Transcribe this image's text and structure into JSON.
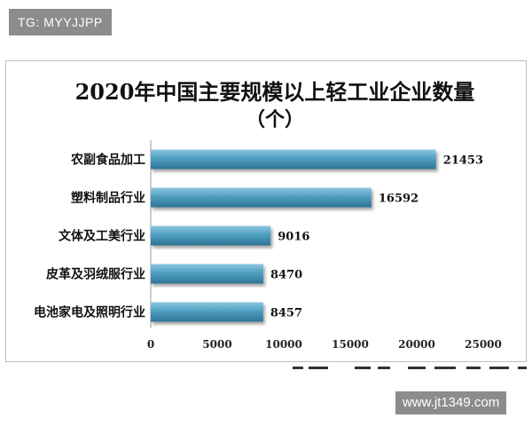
{
  "badge": {
    "text": "TG: MYYJJPP"
  },
  "watermark": {
    "text": "www.jt1349.com"
  },
  "chart_data": {
    "type": "bar",
    "orientation": "horizontal",
    "title": "2020年中国主要规模以上轻工业企业数量",
    "subtitle": "（个）",
    "categories": [
      "农副食品加工",
      "塑料制品行业",
      "文体及工美行业",
      "皮革及羽绒服行业",
      "电池家电及照明行业"
    ],
    "values": [
      21453,
      16592,
      9016,
      8470,
      8457
    ],
    "xlim": [
      0,
      25000
    ],
    "xticks": [
      0,
      5000,
      10000,
      15000,
      20000,
      25000
    ],
    "grid": false,
    "legend": "none",
    "bar_color": "#4f9fc2",
    "bar_color_light": "#8ec7df",
    "bar_color_dark": "#2f7597"
  }
}
